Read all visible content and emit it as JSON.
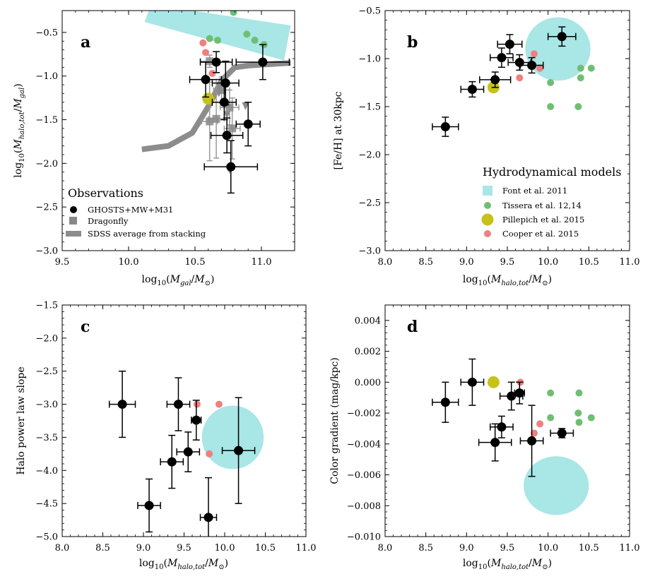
{
  "colors": {
    "obs": "#000000",
    "font": "#a9e6e6",
    "tissera": "#6fbf73",
    "pillepich": "#c6c21a",
    "cooper": "#f07f7f",
    "dragonfly": "#888888",
    "sdss": "#8c8c8c"
  },
  "chart_data": [
    {
      "panel": "a",
      "type": "scatter",
      "xlabel": "log10(M_gal/M_sun)",
      "ylabel": "log10(M_halo,tot/M_gal)",
      "xlim": [
        9.5,
        11.25
      ],
      "ylim": [
        -3.0,
        -0.25
      ],
      "xticks": [
        9.5,
        10.0,
        10.5,
        11.0
      ],
      "xticklabels": [
        "9.5",
        "10.0",
        "10.5",
        "11.0"
      ],
      "yticks": [
        -3.0,
        -2.5,
        -2.0,
        -1.5,
        -1.0,
        -0.5
      ],
      "yticklabels": [
        "−3.0",
        "−2.5",
        "−2.0",
        "−1.5",
        "−1.0",
        "−0.5"
      ],
      "legend": {
        "title": "Observations",
        "entries": [
          "GHOSTS+MW+M31",
          "Dragonfly",
          "SDSS average from stacking"
        ]
      },
      "font_band": [
        [
          10.12,
          -0.38
        ],
        [
          10.17,
          -0.18
        ],
        [
          11.22,
          -0.42
        ],
        [
          11.17,
          -0.82
        ]
      ],
      "sdss_line": {
        "x": [
          10.1,
          10.3,
          10.48,
          10.6,
          10.7,
          10.8,
          10.9,
          11.0,
          11.1,
          11.22
        ],
        "y": [
          -1.84,
          -1.8,
          -1.65,
          -1.35,
          -1.05,
          -0.9,
          -0.88,
          -0.87,
          -0.86,
          -0.85
        ]
      },
      "tissera": {
        "x": [
          10.79,
          10.89,
          10.95,
          11.02,
          10.61,
          10.67
        ],
        "y": [
          -0.27,
          -0.52,
          -0.59,
          -0.64,
          -0.57,
          -0.59
        ]
      },
      "cooper": {
        "x": [
          10.56,
          10.58,
          10.63
        ],
        "y": [
          -0.62,
          -0.73,
          -0.97
        ]
      },
      "pillepich": {
        "x": [
          10.6
        ],
        "y": [
          -1.26
        ]
      },
      "dragonfly": {
        "x": [
          10.61,
          10.7,
          10.76,
          10.78,
          10.66,
          10.61
        ],
        "y": [
          -0.83,
          -1.16,
          -1.36,
          -1.6,
          -1.49,
          -1.52
        ],
        "yerr": [
          0.07,
          0.15,
          0.2,
          0.35,
          0.45,
          0.45
        ],
        "xerr": [
          0.07,
          0.06,
          0.07,
          0.06,
          0.06,
          0.06
        ]
      },
      "upper_limits": {
        "x": [
          10.68,
          10.74,
          10.88,
          10.76
        ],
        "y": [
          -1.2,
          -1.45,
          -1.35,
          -2.08
        ]
      },
      "ghosts": {
        "x": [
          10.66,
          11.01,
          10.58,
          10.73,
          10.72,
          10.9,
          10.74,
          10.77
        ],
        "y": [
          -0.84,
          -0.84,
          -1.04,
          -1.08,
          -1.3,
          -1.55,
          -1.68,
          -2.04
        ],
        "xerr": [
          0.12,
          0.2,
          0.12,
          0.1,
          0.09,
          0.09,
          0.12,
          0.2
        ],
        "yerr": [
          0.12,
          0.2,
          0.2,
          0.25,
          0.2,
          0.25,
          0.2,
          0.3
        ]
      }
    },
    {
      "panel": "b",
      "type": "scatter",
      "xlabel": "log10(M_halo,tot/M_sun)",
      "ylabel": "[Fe/H] at 30kpc",
      "xlim": [
        8.0,
        11.0
      ],
      "ylim": [
        -3.0,
        -0.5
      ],
      "xticks": [
        8.0,
        8.5,
        9.0,
        9.5,
        10.0,
        10.5,
        11.0
      ],
      "xticklabels": [
        "8.0",
        "8.5",
        "9.0",
        "9.5",
        "10.0",
        "10.5",
        "11.0"
      ],
      "yticks": [
        -3.0,
        -2.5,
        -2.0,
        -1.5,
        -1.0,
        -0.5
      ],
      "yticklabels": [
        "−3.0",
        "−2.5",
        "−2.0",
        "−1.5",
        "−1.0",
        "−0.5"
      ],
      "legend": {
        "title": "Hydrodynamical models",
        "entries": [
          "Font et al. 2011",
          "Tissera et al. 12,14",
          "Pillepich et al. 2015",
          "Cooper et al. 2015"
        ]
      },
      "font_circle": {
        "cx": 10.12,
        "cy": -0.9,
        "rx": 0.4,
        "ry": 0.33
      },
      "tissera": {
        "x": [
          10.4,
          10.53,
          10.03,
          10.4,
          10.03,
          10.37
        ],
        "y": [
          -1.1,
          -1.1,
          -1.25,
          -1.2,
          -1.5,
          -1.5
        ]
      },
      "cooper": {
        "x": [
          9.83,
          9.65,
          9.9
        ],
        "y": [
          -0.95,
          -1.2,
          -1.1
        ]
      },
      "pillepich": {
        "x": [
          9.33
        ],
        "y": [
          -1.3
        ]
      },
      "ghosts": {
        "x": [
          10.17,
          9.53,
          9.43,
          9.65,
          9.8,
          9.35,
          9.07,
          8.74
        ],
        "y": [
          -0.77,
          -0.85,
          -0.99,
          -1.04,
          -1.07,
          -1.22,
          -1.32,
          -1.71
        ],
        "xerr": [
          0.17,
          0.15,
          0.14,
          0.14,
          0.14,
          0.19,
          0.14,
          0.16
        ],
        "yerr": [
          0.1,
          0.1,
          0.1,
          0.08,
          0.08,
          0.08,
          0.08,
          0.1
        ]
      }
    },
    {
      "panel": "c",
      "type": "scatter",
      "xlabel": "log10(M_halo,tot/M_sun)",
      "ylabel": "Halo power law slope",
      "xlim": [
        8.0,
        11.0
      ],
      "ylim": [
        -5.0,
        -1.5
      ],
      "xticks": [
        8.0,
        8.5,
        9.0,
        9.5,
        10.0,
        10.5,
        11.0
      ],
      "xticklabels": [
        "8.0",
        "8.5",
        "9.0",
        "9.5",
        "10.0",
        "10.5",
        "11.0"
      ],
      "yticks": [
        -5.0,
        -4.5,
        -4.0,
        -3.5,
        -3.0,
        -2.5,
        -2.0,
        -1.5
      ],
      "yticklabels": [
        "−5.0",
        "−4.5",
        "−4.0",
        "−3.5",
        "−3.0",
        "−2.5",
        "−2.0",
        "−1.5"
      ],
      "font_circle": {
        "cx": 10.1,
        "cy": -3.5,
        "rx": 0.38,
        "ry": 0.48
      },
      "cooper": {
        "x": [
          9.66,
          9.93,
          9.81
        ],
        "y": [
          -3.0,
          -3.0,
          -3.75
        ]
      },
      "ghosts": {
        "x": [
          8.74,
          9.43,
          9.65,
          9.55,
          10.17,
          9.35,
          9.07,
          9.8
        ],
        "y": [
          -3.0,
          -3.0,
          -3.24,
          -3.72,
          -3.7,
          -3.87,
          -4.53,
          -4.71
        ],
        "xerr": [
          0.16,
          0.14,
          0.06,
          0.14,
          0.2,
          0.14,
          0.14,
          0.1
        ],
        "yerr": [
          0.5,
          0.4,
          0.3,
          0.3,
          0.8,
          0.4,
          0.4,
          0.6
        ]
      }
    },
    {
      "panel": "d",
      "type": "scatter",
      "xlabel": "log10(M_halo,tot/M_sun)",
      "ylabel": "Color gradient (mag/kpc)",
      "xlim": [
        8.0,
        11.0
      ],
      "ylim": [
        -0.01,
        0.005
      ],
      "xticks": [
        8.0,
        8.5,
        9.0,
        9.5,
        10.0,
        10.5,
        11.0
      ],
      "xticklabels": [
        "8.0",
        "8.5",
        "9.0",
        "9.5",
        "10.0",
        "10.5",
        "11.0"
      ],
      "yticks": [
        -0.01,
        -0.008,
        -0.006,
        -0.004,
        -0.002,
        0.0,
        0.002,
        0.004
      ],
      "yticklabels": [
        "−0.010",
        "−0.008",
        "−0.006",
        "−0.004",
        "−0.002",
        "0.000",
        "0.002",
        "0.004"
      ],
      "font_circle": {
        "cx": 10.1,
        "cy": -0.0067,
        "rx": 0.4,
        "ry": 0.0019
      },
      "tissera": {
        "x": [
          10.03,
          10.38,
          10.03,
          10.37,
          10.38,
          10.53
        ],
        "y": [
          -0.0007,
          -0.0007,
          -0.0023,
          -0.002,
          -0.0026,
          -0.0023
        ]
      },
      "cooper": {
        "x": [
          9.66,
          9.83,
          9.9
        ],
        "y": [
          0.0,
          -0.0033,
          -0.0027
        ]
      },
      "pillepich": {
        "x": [
          9.33
        ],
        "y": [
          0.0
        ]
      },
      "ghosts": {
        "x": [
          8.74,
          9.07,
          9.55,
          9.65,
          9.43,
          9.35,
          9.8,
          10.17
        ],
        "y": [
          -0.0013,
          0.0,
          -0.0009,
          -0.0007,
          -0.0029,
          -0.0039,
          -0.0038,
          -0.0033
        ],
        "xerr": [
          0.16,
          0.14,
          0.14,
          0.06,
          0.14,
          0.2,
          0.14,
          0.14
        ],
        "yerr": [
          0.0013,
          0.0015,
          0.0009,
          0.0007,
          0.0007,
          0.0012,
          0.0023,
          0.0003
        ]
      }
    }
  ]
}
